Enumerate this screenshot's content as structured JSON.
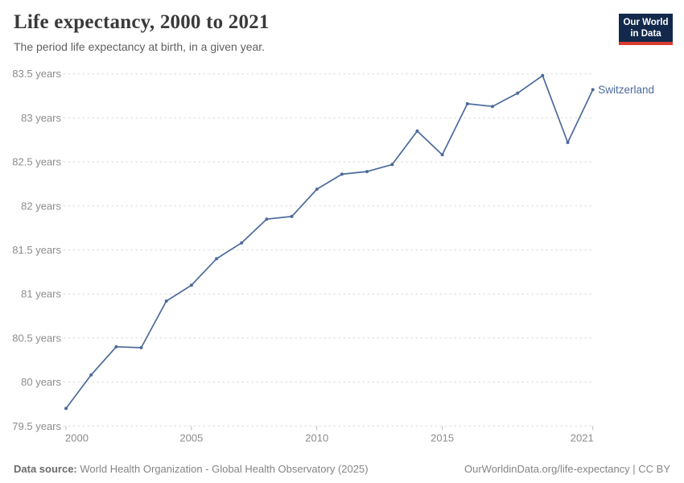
{
  "header": {
    "title": "Life expectancy, 2000 to 2021",
    "subtitle": "The period life expectancy at birth, in a given year.",
    "logo": {
      "line1": "Our World",
      "line2": "in Data"
    }
  },
  "chart_data": {
    "type": "line",
    "title": "Life expectancy, 2000 to 2021",
    "xlabel": "",
    "ylabel": "",
    "xlim": [
      2000,
      2021
    ],
    "ylim": [
      79.5,
      83.5
    ],
    "x_ticks": [
      2000,
      2005,
      2010,
      2015,
      2021
    ],
    "y_ticks": [
      79.5,
      80,
      80.5,
      81,
      81.5,
      82,
      82.5,
      83,
      83.5
    ],
    "y_tick_suffix": " years",
    "grid": "horizontal-dashed",
    "legend_position": "line-end-label",
    "series": [
      {
        "name": "Switzerland",
        "color": "#4C6A9C",
        "x": [
          2000,
          2001,
          2002,
          2003,
          2004,
          2005,
          2006,
          2007,
          2008,
          2009,
          2010,
          2011,
          2012,
          2013,
          2014,
          2015,
          2016,
          2017,
          2018,
          2019,
          2020,
          2021
        ],
        "values": [
          79.7,
          80.08,
          80.4,
          80.39,
          80.92,
          81.1,
          81.4,
          81.58,
          81.85,
          81.88,
          82.19,
          82.36,
          82.39,
          82.47,
          82.85,
          82.58,
          83.16,
          83.13,
          83.28,
          83.48,
          82.72,
          83.32
        ]
      }
    ]
  },
  "footer": {
    "source_label": "Data source:",
    "source_text": "World Health Organization - Global Health Observatory (2025)",
    "link_text": "OurWorldinData.org/life-expectancy | CC BY"
  },
  "colors": {
    "line": "#4C6A9C",
    "grid": "#DBDBDB",
    "axis_tick_mark": "#BBBBBB",
    "tick_label": "#8C8C8C",
    "title": "#3A3A3A",
    "subtitle": "#5F5F5F",
    "footer_text": "#858585",
    "footer_bold": "#6B6B6B",
    "logo_background": "#12294B",
    "logo_accent": "#DC3B30",
    "logo_text": "#FFFFFF",
    "background": "#FFFFFF"
  }
}
